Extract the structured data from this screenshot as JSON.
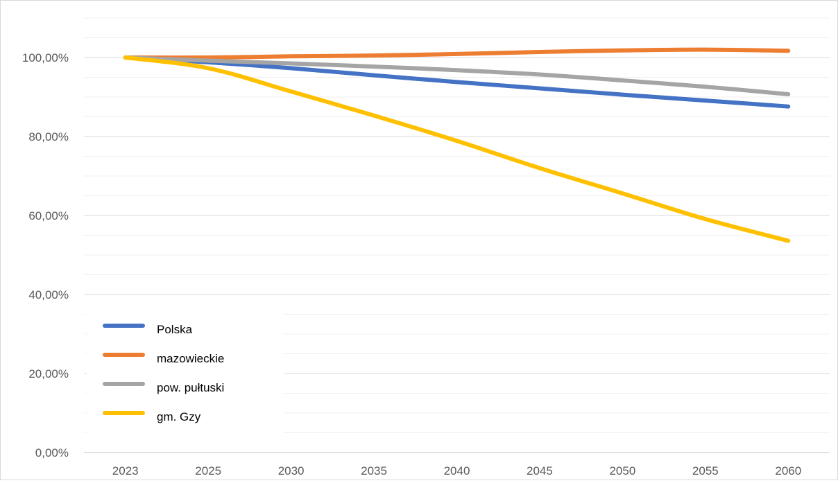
{
  "chart_data": {
    "type": "line",
    "title": "",
    "xlabel": "",
    "ylabel": "",
    "categories": [
      "2023",
      "2025",
      "2030",
      "2035",
      "2040",
      "2045",
      "2050",
      "2055",
      "2060"
    ],
    "y_ticks": [
      "0,00%",
      "20,00%",
      "40,00%",
      "60,00%",
      "80,00%",
      "100,00%"
    ],
    "ylim": [
      0,
      1.1
    ],
    "grid": true,
    "legend_position": "bottom-left",
    "series": [
      {
        "name": "Polska",
        "color": "#4472C4",
        "values": [
          1.0,
          0.988,
          0.973,
          0.955,
          0.938,
          0.922,
          0.906,
          0.891,
          0.876
        ]
      },
      {
        "name": "mazowieckie",
        "color": "#ED7D31",
        "values": [
          1.0,
          1.0,
          1.003,
          1.005,
          1.009,
          1.014,
          1.018,
          1.02,
          1.017
        ]
      },
      {
        "name": "pow. pułtuski",
        "color": "#A5A5A5",
        "values": [
          1.0,
          0.992,
          0.985,
          0.977,
          0.968,
          0.957,
          0.942,
          0.926,
          0.907
        ]
      },
      {
        "name": "gm. Gzy",
        "color": "#FFC000",
        "values": [
          1.0,
          0.973,
          0.914,
          0.853,
          0.789,
          0.72,
          0.656,
          0.591,
          0.536
        ]
      }
    ]
  }
}
